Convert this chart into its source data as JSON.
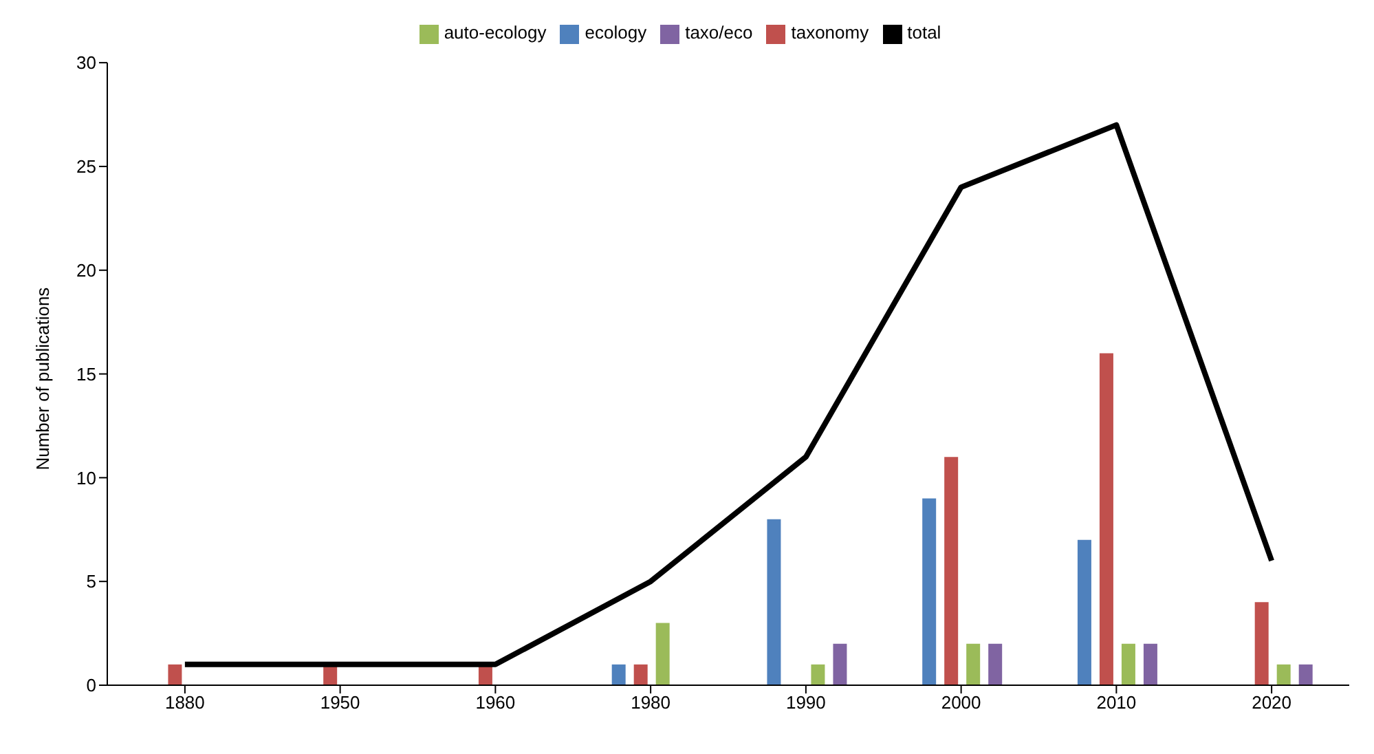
{
  "chart_data": {
    "type": "bar",
    "ylabel": "Number of publications",
    "categories": [
      "1880",
      "1950",
      "1960",
      "1980",
      "1990",
      "2000",
      "2010",
      "2020"
    ],
    "series": [
      {
        "name": "ecology",
        "color": "#4f81bd",
        "values": [
          null,
          null,
          null,
          1,
          8,
          9,
          7,
          null
        ]
      },
      {
        "name": "taxonomy",
        "color": "#c0504d",
        "values": [
          1,
          1,
          1,
          1,
          null,
          11,
          16,
          4
        ]
      },
      {
        "name": "auto-ecology",
        "color": "#9bbb59",
        "values": [
          null,
          null,
          null,
          3,
          1,
          2,
          2,
          1
        ]
      },
      {
        "name": "taxo/eco",
        "color": "#8064a2",
        "values": [
          null,
          null,
          null,
          null,
          2,
          2,
          2,
          1
        ]
      },
      {
        "name": "total",
        "type": "line",
        "color": "#000000",
        "values": [
          1,
          1,
          1,
          5,
          11,
          24,
          27,
          6
        ]
      }
    ],
    "ylim": [
      0,
      30
    ],
    "yticks": [
      0,
      5,
      10,
      15,
      20,
      25,
      30
    ],
    "grid": false,
    "legend": "top",
    "marker": "none",
    "line_style": "solid"
  }
}
